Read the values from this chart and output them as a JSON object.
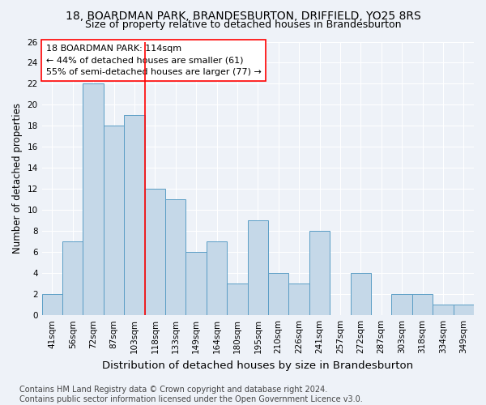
{
  "title1": "18, BOARDMAN PARK, BRANDESBURTON, DRIFFIELD, YO25 8RS",
  "title2": "Size of property relative to detached houses in Brandesburton",
  "xlabel": "Distribution of detached houses by size in Brandesburton",
  "ylabel": "Number of detached properties",
  "footnote": "Contains HM Land Registry data © Crown copyright and database right 2024.\nContains public sector information licensed under the Open Government Licence v3.0.",
  "categories": [
    "41sqm",
    "56sqm",
    "72sqm",
    "87sqm",
    "103sqm",
    "118sqm",
    "133sqm",
    "149sqm",
    "164sqm",
    "180sqm",
    "195sqm",
    "210sqm",
    "226sqm",
    "241sqm",
    "257sqm",
    "272sqm",
    "287sqm",
    "303sqm",
    "318sqm",
    "334sqm",
    "349sqm"
  ],
  "values": [
    2,
    7,
    22,
    18,
    19,
    12,
    11,
    6,
    7,
    3,
    9,
    4,
    3,
    8,
    0,
    4,
    0,
    2,
    2,
    1,
    1
  ],
  "bar_color": "#c5d8e8",
  "bar_edge_color": "#5a9dc5",
  "annotation_text": "18 BOARDMAN PARK: 114sqm\n← 44% of detached houses are smaller (61)\n55% of semi-detached houses are larger (77) →",
  "annotation_box_color": "white",
  "annotation_box_edge_color": "red",
  "vline_color": "red",
  "vline_x_index": 4.5,
  "ylim": [
    0,
    26
  ],
  "yticks": [
    0,
    2,
    4,
    6,
    8,
    10,
    12,
    14,
    16,
    18,
    20,
    22,
    24,
    26
  ],
  "background_color": "#eef2f8",
  "grid_color": "white",
  "title1_fontsize": 10,
  "title2_fontsize": 9,
  "xlabel_fontsize": 9.5,
  "ylabel_fontsize": 8.5,
  "tick_fontsize": 7.5,
  "annotation_fontsize": 8,
  "footnote_fontsize": 7
}
